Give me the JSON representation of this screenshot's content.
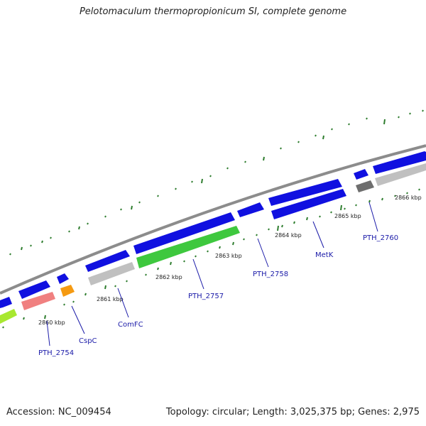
{
  "title": "Pelotomaculum thermopropionicum SI, complete genome",
  "footer": {
    "accession": "Accession: NC_009454",
    "stats": "Topology: circular; Length: 3,025,375 bp; Genes: 2,975"
  },
  "colors": {
    "backbone": "#8c8c8c",
    "tick": "#2e7d2e",
    "cds_blue": "#1010e0",
    "cds_green": "#3ec83e",
    "cds_lime": "#a8e830",
    "cds_pink": "#f08080",
    "cds_orange": "#f59a12",
    "cds_gray": "#c0c0c0",
    "cds_darkgray": "#6e6e6e",
    "label": "#1a1aa8"
  },
  "kbp_labels": [
    "2860 kbp",
    "2861 kbp",
    "2862 kbp",
    "2863 kbp",
    "2864 kbp",
    "2865 kbp",
    "2866 kbp"
  ],
  "gene_labels": [
    "PTH_2754",
    "CspC",
    "ComFC",
    "PTH_2757",
    "PTH_2758",
    "MetK",
    "PTH_2760"
  ]
}
